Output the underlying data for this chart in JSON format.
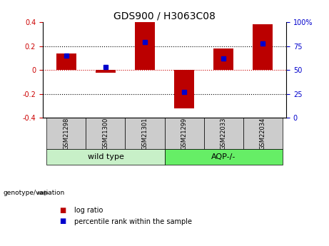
{
  "title": "GDS900 / H3063C08",
  "samples": [
    "GSM21298",
    "GSM21300",
    "GSM21301",
    "GSM21299",
    "GSM22033",
    "GSM22034"
  ],
  "log_ratios": [
    0.14,
    -0.02,
    0.4,
    -0.32,
    0.18,
    0.38
  ],
  "percentile_ranks": [
    65,
    53,
    79,
    27,
    62,
    78
  ],
  "groups": [
    {
      "label": "wild type",
      "start": 0,
      "end": 3
    },
    {
      "label": "AQP-/-",
      "start": 3,
      "end": 6
    }
  ],
  "wild_type_color": "#c8f0c8",
  "aqp_color": "#66ee66",
  "bar_color": "#BB0000",
  "dot_color": "#0000CC",
  "ylim_left": [
    -0.4,
    0.4
  ],
  "ylim_right": [
    0,
    100
  ],
  "yticks_left": [
    -0.4,
    -0.2,
    0.0,
    0.2,
    0.4
  ],
  "ytick_labels_left": [
    "-0.4",
    "-0.2",
    "0",
    "0.2",
    "0.4"
  ],
  "yticks_right": [
    0,
    25,
    50,
    75,
    100
  ],
  "ytick_labels_right": [
    "0",
    "25",
    "50",
    "75",
    "100%"
  ],
  "bar_width": 0.5,
  "background_color": "#ffffff",
  "sample_area_color": "#cccccc",
  "title_fontsize": 10,
  "tick_fontsize": 7,
  "sample_fontsize": 6,
  "group_fontsize": 8,
  "legend_fontsize": 7,
  "genotype_label": "genotype/variation",
  "legend_items": [
    {
      "color": "#BB0000",
      "label": "log ratio"
    },
    {
      "color": "#0000CC",
      "label": "percentile rank within the sample"
    }
  ]
}
